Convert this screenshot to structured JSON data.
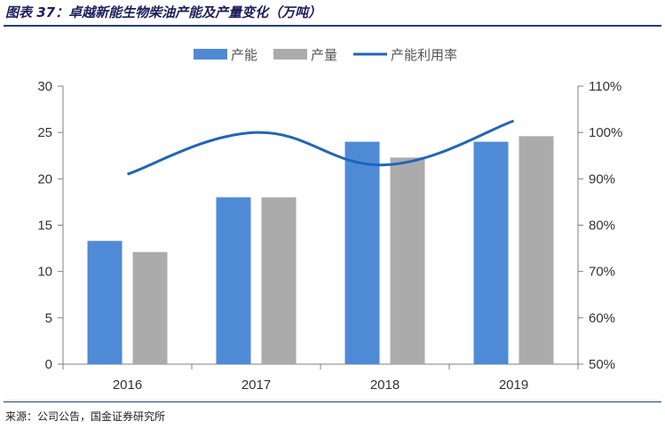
{
  "figure": {
    "title": "图表 37：卓越新能生物柴油产能及产量变化（万吨）",
    "source": "来源：公司公告，国金证券研究所"
  },
  "chart_data": {
    "type": "bar",
    "categories": [
      "2016",
      "2017",
      "2018",
      "2019"
    ],
    "series": [
      {
        "name": "产能",
        "type": "bar",
        "axis": "left",
        "color": "#4f8ad6",
        "values": [
          13.3,
          18.0,
          24.0,
          24.0
        ]
      },
      {
        "name": "产量",
        "type": "bar",
        "axis": "left",
        "color": "#ababab",
        "values": [
          12.1,
          18.0,
          22.3,
          24.6
        ]
      },
      {
        "name": "产能利用率",
        "type": "line",
        "axis": "right",
        "color": "#1f66b8",
        "values": [
          0.91,
          1.0,
          0.93,
          1.025
        ]
      }
    ],
    "left_axis": {
      "ylim": [
        0,
        30
      ],
      "ticks": [
        "0",
        "5",
        "10",
        "15",
        "20",
        "25",
        "30"
      ]
    },
    "right_axis": {
      "ylim": [
        0.5,
        1.1
      ],
      "ticks": [
        "50%",
        "60%",
        "70%",
        "80%",
        "90%",
        "100%",
        "110%"
      ]
    },
    "legend_position": "top-center",
    "grid": false
  }
}
